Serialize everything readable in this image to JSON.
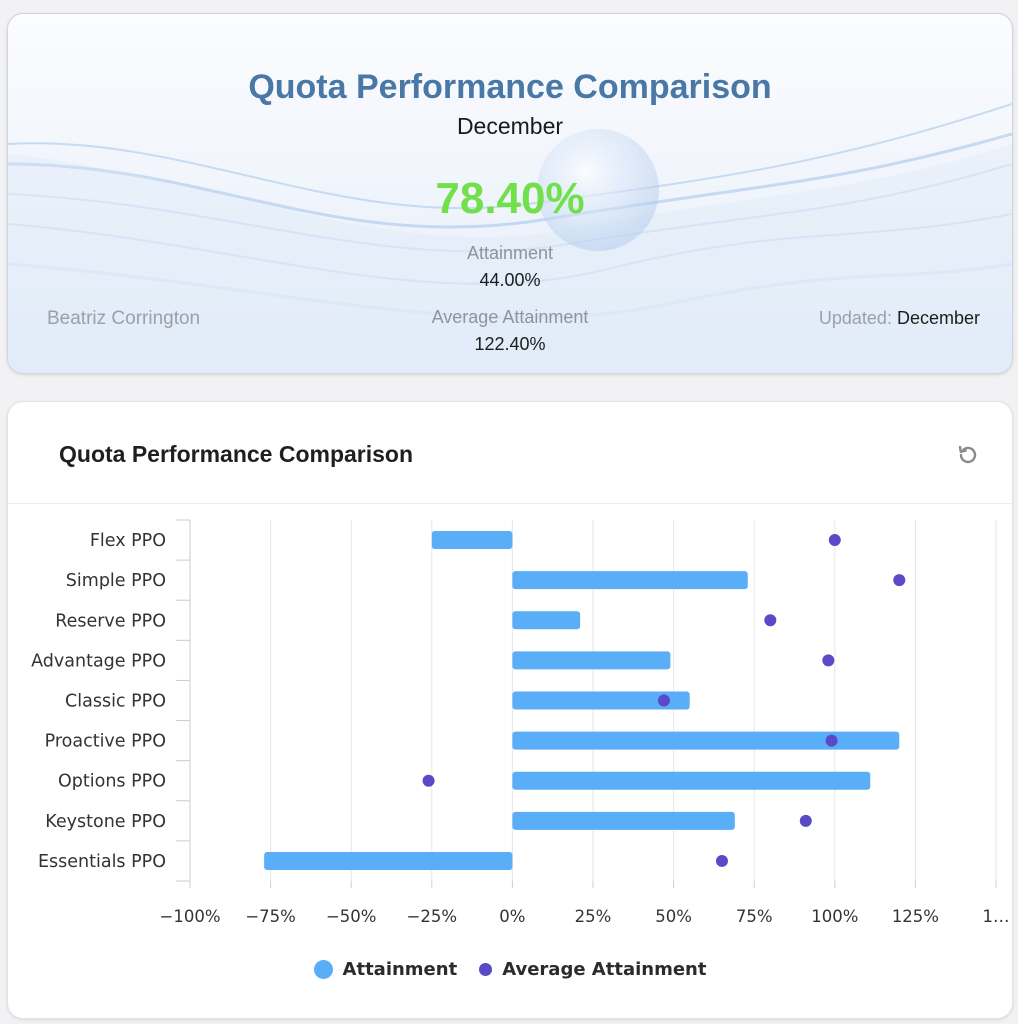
{
  "hero": {
    "title": "Quota Performance Comparison",
    "period": "December",
    "attainment_big": "78.40%",
    "attainment_label": "Attainment",
    "attainment_value": "44.00%",
    "avg_label": "Average Attainment",
    "avg_value": "122.40%",
    "owner": "Beatriz Corrington",
    "updated_label": "Updated:",
    "updated_value": "December"
  },
  "card": {
    "title": "Quota Performance Comparison",
    "refresh_icon": "refresh-icon"
  },
  "colors": {
    "title": "#4a78a6",
    "attainment_big": "#72e04a",
    "bar": "#5aaef7",
    "dot": "#5b4ac7"
  },
  "chart_data": {
    "type": "bar",
    "orientation": "horizontal",
    "categories": [
      "Flex PPO",
      "Simple PPO",
      "Reserve PPO",
      "Advantage PPO",
      "Classic PPO",
      "Proactive PPO",
      "Options PPO",
      "Keystone PPO",
      "Essentials PPO"
    ],
    "series": [
      {
        "name": "Attainment",
        "kind": "bar",
        "color": "#5aaef7",
        "values": [
          -25,
          73,
          21,
          49,
          55,
          120,
          111,
          69,
          -77
        ]
      },
      {
        "name": "Average Attainment",
        "kind": "scatter",
        "color": "#5b4ac7",
        "values": [
          100,
          120,
          80,
          98,
          47,
          99,
          -26,
          91,
          65
        ]
      }
    ],
    "xlim": [
      -100,
      150
    ],
    "x_ticks": [
      "−100%",
      "−75%",
      "−50%",
      "−25%",
      "0%",
      "25%",
      "50%",
      "75%",
      "100%",
      "125%",
      "1…"
    ],
    "grid": true,
    "legend_position": "bottom"
  }
}
